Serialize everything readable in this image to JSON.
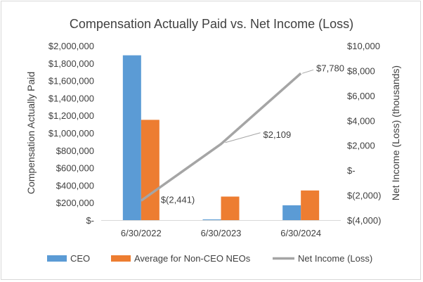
{
  "chart_data": {
    "type": "bar+line",
    "title": "Compensation Actually Paid vs. Net Income (Loss)",
    "categories": [
      "6/30/2022",
      "6/30/2023",
      "6/30/2024"
    ],
    "ylabel": "Compensation Actually Paid",
    "y2label": "Net Income (Loss) (thousands)",
    "ylim": [
      0,
      2000000
    ],
    "y2lim": [
      -4000,
      10000
    ],
    "yticks": [
      "$-",
      "$200,000",
      "$400,000",
      "$600,000",
      "$800,000",
      "$1,000,000",
      "$1,200,000",
      "$1,400,000",
      "$1,600,000",
      "$1,800,000",
      "$2,000,000"
    ],
    "y2ticks": [
      "$(4,000)",
      "$(2,000)",
      "$-",
      "$2,000",
      "$4,000",
      "$6,000",
      "$8,000",
      "$10,000"
    ],
    "series": [
      {
        "name": "CEO",
        "type": "bar",
        "axis": "left",
        "color": "#5b9bd5",
        "values": [
          1890000,
          8000,
          170000
        ]
      },
      {
        "name": "Average for Non-CEO NEOs",
        "type": "bar",
        "axis": "left",
        "color": "#ed7d31",
        "values": [
          1150000,
          270000,
          340000
        ]
      },
      {
        "name": "Net Income (Loss)",
        "type": "line",
        "axis": "right",
        "color": "#a5a5a5",
        "values": [
          -2441,
          2109,
          7780
        ],
        "labels": [
          "$(2,441)",
          "$2,109",
          "$7,780"
        ]
      }
    ],
    "legend": "bottom",
    "grid": false
  }
}
